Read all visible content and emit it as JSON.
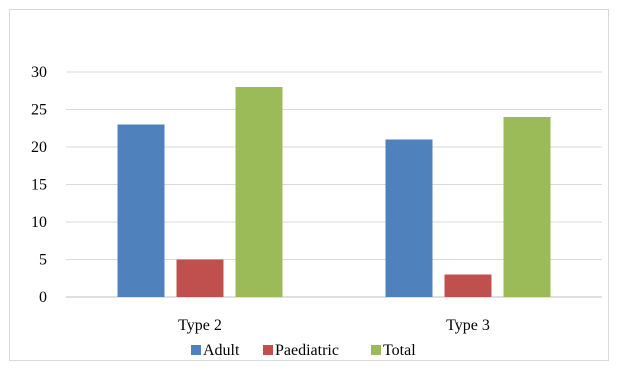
{
  "chart_data": {
    "type": "bar",
    "categories": [
      "Type 2",
      "Type 3"
    ],
    "series": [
      {
        "name": "Adult",
        "values": [
          23,
          21
        ],
        "color": "#4f81bd"
      },
      {
        "name": "Paediatric",
        "values": [
          5,
          3
        ],
        "color": "#c0504d"
      },
      {
        "name": "Total",
        "values": [
          28,
          24
        ],
        "color": "#9bbb59"
      }
    ],
    "ylim": [
      0,
      30
    ],
    "yticks": [
      0,
      5,
      10,
      15,
      20,
      25,
      30
    ],
    "grid": true,
    "legend_position": "bottom",
    "gridline_color": "#d9d9d9",
    "axis_color": "#bfbfbf"
  }
}
